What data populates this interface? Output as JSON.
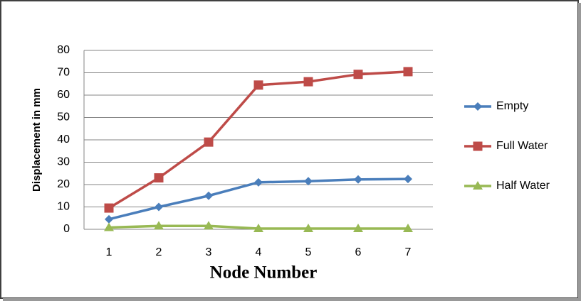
{
  "chart_data": {
    "type": "line",
    "x_label": "Node Number",
    "y_label": "Displacement in mm",
    "categories": [
      "1",
      "2",
      "3",
      "4",
      "5",
      "6",
      "7"
    ],
    "series": [
      {
        "name": "Empty",
        "color": "#4a7ebb",
        "marker": "diamond",
        "values": [
          4.5,
          10,
          15,
          21,
          21.5,
          22.3,
          22.5
        ]
      },
      {
        "name": "Full Water",
        "color": "#be4b48",
        "marker": "square",
        "values": [
          9.5,
          23,
          39,
          64.5,
          66,
          69.3,
          70.5
        ]
      },
      {
        "name": "Half Water",
        "color": "#98b954",
        "marker": "triangle",
        "values": [
          0.8,
          1.5,
          1.5,
          0.3,
          0.3,
          0.3,
          0.3
        ]
      }
    ],
    "ylim": [
      0,
      80
    ],
    "yticks": [
      0,
      10,
      20,
      30,
      40,
      50,
      60,
      70,
      80
    ],
    "grid": true,
    "legend": "right"
  }
}
